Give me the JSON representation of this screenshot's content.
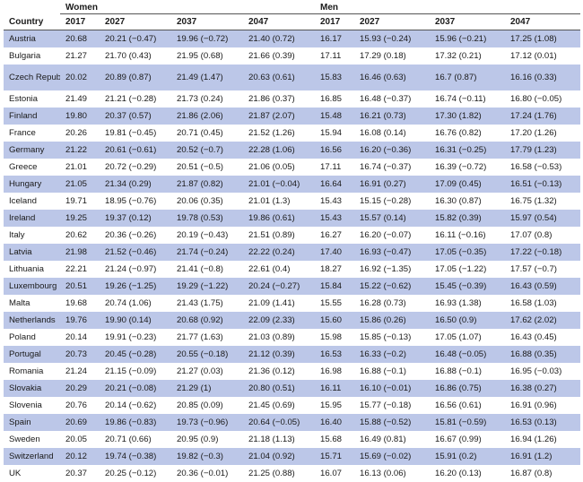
{
  "table": {
    "group_headers": {
      "women": "Women",
      "men": "Men"
    },
    "columns": [
      "Country",
      "2017",
      "2027",
      "2037",
      "2047",
      "2017",
      "2027",
      "2037",
      "2047"
    ],
    "rows": [
      [
        "Austria",
        "20.68",
        "20.21 (−0.47)",
        "19.96 (−0.72)",
        "21.40 (0.72)",
        "16.17",
        "15.93 (−0.24)",
        "15.96 (−0.21)",
        "17.25 (1.08)"
      ],
      [
        "Bulgaria",
        "21.27",
        "21.70 (0.43)",
        "21.95 (0.68)",
        "21.66 (0.39)",
        "17.11",
        "17.29 (0.18)",
        "17.32 (0.21)",
        "17.12 (0.01)"
      ],
      [
        "Czech Republic",
        "20.02",
        "20.89 (0.87)",
        "21.49 (1.47)",
        "20.63 (0.61)",
        "15.83",
        "16.46 (0.63)",
        "16.7 (0.87)",
        "16.16 (0.33)"
      ],
      [
        "Estonia",
        "21.49",
        "21.21 (−0.28)",
        "21.73 (0.24)",
        "21.86 (0.37)",
        "16.85",
        "16.48 (−0.37)",
        "16.74 (−0.11)",
        "16.80 (−0.05)"
      ],
      [
        "Finland",
        "19.80",
        "20.37 (0.57)",
        "21.86 (2.06)",
        "21.87 (2.07)",
        "15.48",
        "16.21 (0.73)",
        "17.30 (1.82)",
        "17.24 (1.76)"
      ],
      [
        "France",
        "20.26",
        "19.81 (−0.45)",
        "20.71 (0.45)",
        "21.52 (1.26)",
        "15.94",
        "16.08 (0.14)",
        "16.76 (0.82)",
        "17.20 (1.26)"
      ],
      [
        "Germany",
        "21.22",
        "20.61 (−0.61)",
        "20.52 (−0.7)",
        "22.28 (1.06)",
        "16.56",
        "16.20 (−0.36)",
        "16.31 (−0.25)",
        "17.79 (1.23)"
      ],
      [
        "Greece",
        "21.01",
        "20.72 (−0.29)",
        "20.51 (−0.5)",
        "21.06 (0.05)",
        "17.11",
        "16.74 (−0.37)",
        "16.39 (−0.72)",
        "16.58 (−0.53)"
      ],
      [
        "Hungary",
        "21.05",
        "21.34 (0.29)",
        "21.87 (0.82)",
        "21.01 (−0.04)",
        "16.64",
        "16.91 (0.27)",
        "17.09 (0.45)",
        "16.51 (−0.13)"
      ],
      [
        "Iceland",
        "19.71",
        "18.95 (−0.76)",
        "20.06 (0.35)",
        "21.01 (1.3)",
        "15.43",
        "15.15 (−0.28)",
        "16.30 (0.87)",
        "16.75 (1.32)"
      ],
      [
        "Ireland",
        "19.25",
        "19.37 (0.12)",
        "19.78 (0.53)",
        "19.86 (0.61)",
        "15.43",
        "15.57 (0.14)",
        "15.82 (0.39)",
        "15.97 (0.54)"
      ],
      [
        "Italy",
        "20.62",
        "20.36 (−0.26)",
        "20.19 (−0.43)",
        "21.51 (0.89)",
        "16.27",
        "16.20 (−0.07)",
        "16.11 (−0.16)",
        "17.07 (0.8)"
      ],
      [
        "Latvia",
        "21.98",
        "21.52 (−0.46)",
        "21.74 (−0.24)",
        "22.22 (0.24)",
        "17.40",
        "16.93 (−0.47)",
        "17.05 (−0.35)",
        "17.22 (−0.18)"
      ],
      [
        "Lithuania",
        "22.21",
        "21.24 (−0.97)",
        "21.41 (−0.8)",
        "22.61 (0.4)",
        "18.27",
        "16.92 (−1.35)",
        "17.05 (−1.22)",
        "17.57 (−0.7)"
      ],
      [
        "Luxembourg",
        "20.51",
        "19.26 (−1.25)",
        "19.29 (−1.22)",
        "20.24 (−0.27)",
        "15.84",
        "15.22 (−0.62)",
        "15.45 (−0.39)",
        "16.43 (0.59)"
      ],
      [
        "Malta",
        "19.68",
        "20.74 (1.06)",
        "21.43 (1.75)",
        "21.09 (1.41)",
        "15.55",
        "16.28 (0.73)",
        "16.93 (1.38)",
        "16.58 (1.03)"
      ],
      [
        "Netherlands",
        "19.76",
        "19.90 (0.14)",
        "20.68 (0.92)",
        "22.09 (2.33)",
        "15.60",
        "15.86 (0.26)",
        "16.50 (0.9)",
        "17.62 (2.02)"
      ],
      [
        "Poland",
        "20.14",
        "19.91 (−0.23)",
        "21.77 (1.63)",
        "21.03 (0.89)",
        "15.98",
        "15.85 (−0.13)",
        "17.05 (1.07)",
        "16.43 (0.45)"
      ],
      [
        "Portugal",
        "20.73",
        "20.45 (−0.28)",
        "20.55 (−0.18)",
        "21.12 (0.39)",
        "16.53",
        "16.33 (−0.2)",
        "16.48 (−0.05)",
        "16.88 (0.35)"
      ],
      [
        "Romania",
        "21.24",
        "21.15 (−0.09)",
        "21.27 (0.03)",
        "21.36 (0.12)",
        "16.98",
        "16.88 (−0.1)",
        "16.88 (−0.1)",
        "16.95 (−0.03)"
      ],
      [
        "Slovakia",
        "20.29",
        "20.21 (−0.08)",
        "21.29 (1)",
        "20.80 (0.51)",
        "16.11",
        "16.10 (−0.01)",
        "16.86 (0.75)",
        "16.38 (0.27)"
      ],
      [
        "Slovenia",
        "20.76",
        "20.14 (−0.62)",
        "20.85 (0.09)",
        "21.45 (0.69)",
        "15.95",
        "15.77 (−0.18)",
        "16.56 (0.61)",
        "16.91 (0.96)"
      ],
      [
        "Spain",
        "20.69",
        "19.86 (−0.83)",
        "19.73 (−0.96)",
        "20.64 (−0.05)",
        "16.40",
        "15.88 (−0.52)",
        "15.81 (−0.59)",
        "16.53 (0.13)"
      ],
      [
        "Sweden",
        "20.05",
        "20.71 (0.66)",
        "20.95 (0.9)",
        "21.18 (1.13)",
        "15.68",
        "16.49 (0.81)",
        "16.67 (0.99)",
        "16.94 (1.26)"
      ],
      [
        "Switzerland",
        "20.12",
        "19.74 (−0.38)",
        "19.82 (−0.3)",
        "21.04 (0.92)",
        "15.71",
        "15.69 (−0.02)",
        "15.91 (0.2)",
        "16.91 (1.2)"
      ],
      [
        "UK",
        "20.37",
        "20.25 (−0.12)",
        "20.36 (−0.01)",
        "21.25 (0.88)",
        "16.07",
        "16.13 (0.06)",
        "16.20 (0.13)",
        "16.87 (0.8)"
      ]
    ],
    "shaded_row_color": "#bcc7e8"
  }
}
